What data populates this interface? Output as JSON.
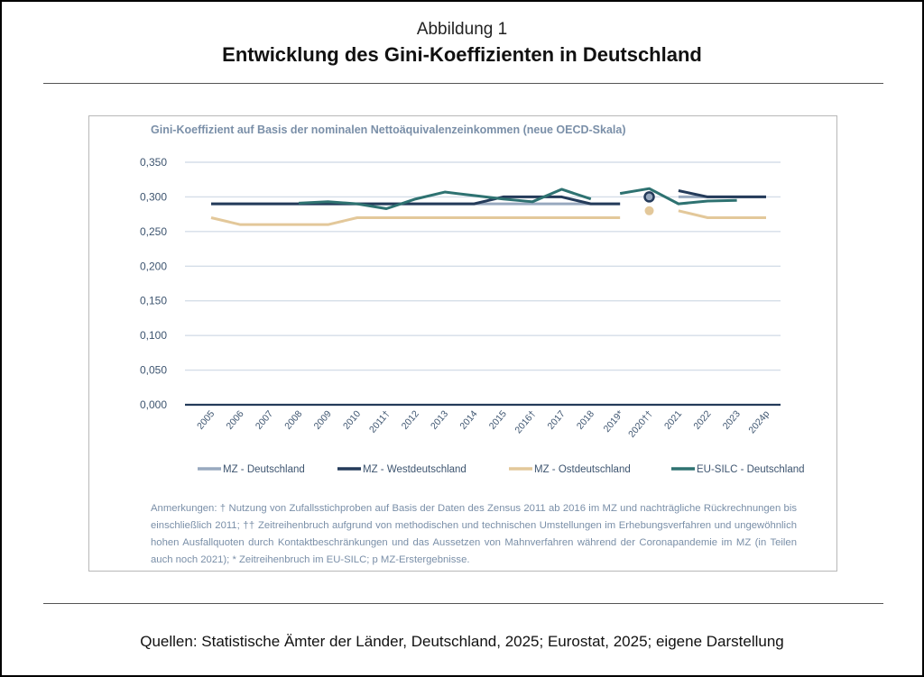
{
  "figure": {
    "label": "Abbildung 1",
    "title": "Entwicklung des Gini-Koeffizienten in Deutschland",
    "sources": "Quellen: Statistische Ämter der Länder, Deutschland, 2025; Eurostat, 2025; eigene Darstellung",
    "notes": "Anmerkungen: † Nutzung von Zufallsstichproben auf Basis der Daten des Zensus 2011 ab 2016 im MZ und nachträgliche Rückrechnungen bis einschließlich 2011; †† Zeitreihenbruch aufgrund von methodischen und technischen Umstellungen im Erhebungsverfahren und ungewöhnlich hohen Ausfallquoten durch Kontaktbeschränkungen und das Aussetzen von Mahnverfahren während der Coronapandemie im MZ (in Teilen auch noch 2021); * Zeitreihenbruch im EU-SILC; p MZ-Erstergebnisse."
  },
  "chart_data": {
    "type": "line",
    "title": "Gini-Koeffizient auf Basis der nominalen Nettoäquivalenzeinkommen (neue OECD-Skala)",
    "xlabel": "",
    "ylabel": "",
    "ylim": [
      0,
      0.35
    ],
    "yticks": [
      0,
      0.05,
      0.1,
      0.15,
      0.2,
      0.25,
      0.3,
      0.35
    ],
    "ytick_labels": [
      "0,000",
      "0,050",
      "0,100",
      "0,150",
      "0,200",
      "0,250",
      "0,300",
      "0,350"
    ],
    "grid": true,
    "legend_position": "bottom",
    "categories": [
      "2005",
      "2006",
      "2007",
      "2008",
      "2009",
      "2010",
      "2011†",
      "2012",
      "2013",
      "2014",
      "2015",
      "2016†",
      "2017",
      "2018",
      "2019*",
      "2020††",
      "2021",
      "2022",
      "2023",
      "2024p"
    ],
    "series": [
      {
        "name": "MZ - Deutschland",
        "color": "#98a9bf",
        "values": [
          0.29,
          0.29,
          0.29,
          0.29,
          0.29,
          0.29,
          0.29,
          0.29,
          0.29,
          0.29,
          0.29,
          0.29,
          0.29,
          0.29,
          0.29,
          0.3,
          0.3,
          0.3,
          0.3,
          0.3
        ],
        "point_only_index": 15
      },
      {
        "name": "MZ - Westdeutschland",
        "color": "#243b5a",
        "values": [
          0.29,
          0.29,
          0.29,
          0.29,
          0.29,
          0.29,
          0.29,
          0.29,
          0.29,
          0.29,
          0.3,
          0.3,
          0.3,
          0.29,
          0.29,
          0.3,
          0.309,
          0.3,
          0.3,
          0.3
        ],
        "point_only_index": 15
      },
      {
        "name": "MZ - Ostdeutschland",
        "color": "#e3c89a",
        "values": [
          0.27,
          0.26,
          0.26,
          0.26,
          0.26,
          0.27,
          0.27,
          0.27,
          0.27,
          0.27,
          0.27,
          0.27,
          0.27,
          0.27,
          0.27,
          0.28,
          0.28,
          0.27,
          0.27,
          0.27
        ],
        "point_only_index": 15
      },
      {
        "name": "EU-SILC - Deutschland",
        "color": "#2e7271",
        "values": [
          null,
          null,
          null,
          0.291,
          0.293,
          0.29,
          0.283,
          0.297,
          0.307,
          0.302,
          0.297,
          0.293,
          0.311,
          0.297,
          0.305,
          0.312,
          0.29,
          0.294,
          0.295,
          null
        ],
        "break_before_index": 14
      }
    ]
  }
}
